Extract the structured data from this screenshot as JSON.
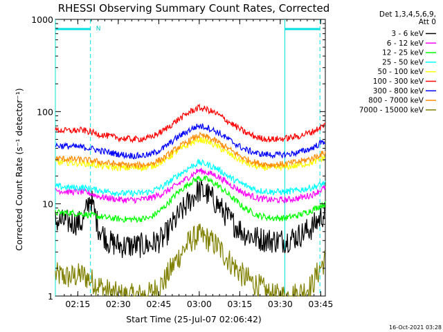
{
  "chart_data": {
    "type": "line",
    "title": "RHESSI Observing Summary Count Rates, Corrected",
    "xlabel": "Start Time (25-Jul-07 02:06:42)",
    "ylabel": "Corrected Count Rate (s⁻¹ detector⁻¹)",
    "x_unit": "minutes from 02:06:42",
    "xlim": [
      0,
      100
    ],
    "ylim": [
      1,
      1000
    ],
    "y_scale": "log",
    "x_tick_labels": [
      "02:15",
      "02:30",
      "02:45",
      "03:00",
      "03:15",
      "03:30",
      "03:45"
    ],
    "x_tick_minutes": [
      8.3,
      23.3,
      38.3,
      53.3,
      68.3,
      83.3,
      98.3
    ],
    "y_tick_labels": [
      "1",
      "10",
      "100",
      "1000"
    ],
    "y_tick_values": [
      1,
      10,
      100,
      1000
    ],
    "legend_header": [
      "Det 1,3,4,5,6,9,",
      "Att 0"
    ],
    "legend_position": "top-right outside",
    "attenuator_marker": "N",
    "night_intervals": [
      [
        0,
        13
      ],
      [
        85,
        98
      ]
    ],
    "annotation": "16-Oct-2021 03:28",
    "x": [
      0,
      5,
      10,
      13,
      16,
      20,
      25,
      30,
      35,
      40,
      45,
      50,
      53,
      56,
      60,
      65,
      70,
      75,
      80,
      85,
      90,
      95,
      98,
      100
    ],
    "series": [
      {
        "name": "3 - 6 keV",
        "color": "#000000",
        "values": [
          6.5,
          6.3,
          6.2,
          12,
          5.5,
          3.8,
          3.5,
          3.5,
          3.6,
          4.2,
          7,
          11,
          14,
          13,
          10,
          6.5,
          4.8,
          4.2,
          4,
          4,
          4.5,
          5.5,
          7,
          8
        ]
      },
      {
        "name": "6 - 12 keV",
        "color": "#ff00ff",
        "values": [
          14,
          13.5,
          13.5,
          13,
          12,
          11.5,
          11,
          11,
          11.5,
          13,
          16,
          20,
          23,
          22,
          20,
          16,
          13,
          11.5,
          11,
          11,
          11.5,
          12.5,
          14,
          15
        ]
      },
      {
        "name": "12 - 25 keV",
        "color": "#00ff00",
        "values": [
          8,
          8,
          7.8,
          7.5,
          7.3,
          7,
          6.8,
          6.8,
          7,
          9,
          13,
          17,
          19,
          18.5,
          16,
          12,
          9,
          7.5,
          7,
          7,
          7.5,
          8.5,
          9.5,
          10
        ]
      },
      {
        "name": "25 - 50 keV",
        "color": "#00ffff",
        "values": [
          15.5,
          15,
          15,
          14.5,
          14,
          13.5,
          13,
          13,
          13.5,
          15.5,
          20,
          25,
          28,
          27,
          24,
          19,
          16,
          14,
          13.5,
          13.5,
          14,
          15,
          16,
          17
        ]
      },
      {
        "name": "50 - 100 keV",
        "color": "#ffff00",
        "values": [
          28,
          28,
          27.5,
          27,
          26,
          25,
          24.5,
          24.5,
          25,
          29,
          37,
          45,
          50,
          48,
          42,
          34,
          28,
          25,
          24.5,
          25,
          26,
          28,
          30,
          32
        ]
      },
      {
        "name": "100 - 300 keV",
        "color": "#ff0000",
        "values": [
          63,
          62,
          63,
          60,
          57,
          54,
          51,
          50,
          52,
          62,
          80,
          100,
          110,
          106,
          94,
          75,
          60,
          52,
          50,
          51,
          54,
          60,
          67,
          72
        ]
      },
      {
        "name": "300 - 800 keV",
        "color": "#0000ff",
        "values": [
          43,
          42,
          41,
          40,
          38,
          36,
          34,
          33,
          34,
          40,
          52,
          64,
          70,
          68,
          60,
          48,
          39,
          35,
          34,
          34,
          36,
          40,
          45,
          48
        ]
      },
      {
        "name": "800 - 7000 keV",
        "color": "#ff8c00",
        "values": [
          31,
          30.5,
          30,
          29.5,
          28.5,
          27.5,
          26.5,
          26,
          27,
          31,
          40,
          49,
          55,
          53,
          47,
          38,
          31,
          27.5,
          26.5,
          27,
          28.5,
          31,
          34,
          36
        ]
      },
      {
        "name": "7000 - 15000 keV",
        "color": "#808000",
        "values": [
          1.7,
          1.6,
          1.7,
          1.5,
          1.3,
          1.1,
          1.0,
          1.0,
          1.05,
          1.4,
          2.5,
          4,
          4.5,
          4.2,
          3.5,
          2.3,
          1.6,
          1.3,
          1.0,
          1.0,
          1.05,
          1.3,
          2,
          2.5
        ]
      }
    ]
  }
}
